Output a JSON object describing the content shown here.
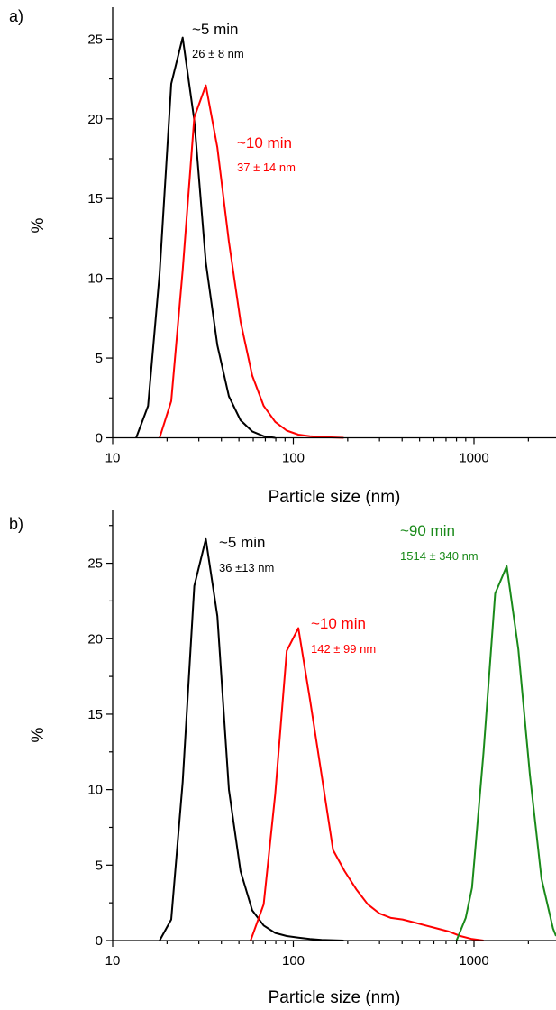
{
  "chart_data": [
    {
      "type": "line",
      "panel_label": "a)",
      "xlabel": "Particle size (nm)",
      "ylabel": "%",
      "x_scale": "log",
      "xlim": [
        10,
        3000
      ],
      "ylim": [
        0,
        27
      ],
      "x_ticks": [
        10,
        100,
        1000
      ],
      "y_ticks": [
        0,
        5,
        10,
        15,
        20,
        25
      ],
      "grid": false,
      "series": [
        {
          "color": "#000000",
          "annotation": "~5 min",
          "annotation_sub": "26 ± 8 nm",
          "points": [
            [
              13.5,
              0
            ],
            [
              15.7,
              2.0
            ],
            [
              18.2,
              10.3
            ],
            [
              21.1,
              22.2
            ],
            [
              24.4,
              25.1
            ],
            [
              28.3,
              19.9
            ],
            [
              32.8,
              11.0
            ],
            [
              38.0,
              5.8
            ],
            [
              44.0,
              2.6
            ],
            [
              51.0,
              1.1
            ],
            [
              59.2,
              0.4
            ],
            [
              68.5,
              0.1
            ],
            [
              79.4,
              0
            ]
          ]
        },
        {
          "color": "#ff0000",
          "annotation": "~10 min",
          "annotation_sub": "37 ± 14 nm",
          "points": [
            [
              18.2,
              0
            ],
            [
              21.1,
              2.3
            ],
            [
              24.4,
              10.5
            ],
            [
              28.3,
              20.1
            ],
            [
              32.8,
              22.1
            ],
            [
              38.0,
              18.2
            ],
            [
              44.0,
              12.3
            ],
            [
              51.0,
              7.3
            ],
            [
              59.2,
              3.9
            ],
            [
              68.5,
              2.0
            ],
            [
              79.4,
              1.0
            ],
            [
              92.0,
              0.45
            ],
            [
              106.6,
              0.2
            ],
            [
              123.5,
              0.1
            ],
            [
              143.2,
              0.05
            ],
            [
              190,
              0
            ]
          ]
        }
      ]
    },
    {
      "type": "line",
      "panel_label": "b)",
      "xlabel": "Particle size (nm)",
      "ylabel": "%",
      "x_scale": "log",
      "xlim": [
        10,
        3000
      ],
      "ylim": [
        0,
        28.5
      ],
      "x_ticks": [
        10,
        100,
        1000
      ],
      "y_ticks": [
        0,
        5,
        10,
        15,
        20,
        25
      ],
      "grid": false,
      "series": [
        {
          "color": "#000000",
          "annotation": "~5 min",
          "annotation_sub": "36 ±13 nm",
          "points": [
            [
              18.2,
              0
            ],
            [
              21.1,
              1.4
            ],
            [
              24.4,
              10.5
            ],
            [
              28.3,
              23.5
            ],
            [
              32.8,
              26.6
            ],
            [
              38.0,
              21.5
            ],
            [
              44.0,
              10.0
            ],
            [
              51.0,
              4.6
            ],
            [
              59.2,
              2.0
            ],
            [
              68.5,
              1.0
            ],
            [
              79.4,
              0.5
            ],
            [
              92.0,
              0.3
            ],
            [
              106.6,
              0.2
            ],
            [
              123.5,
              0.1
            ],
            [
              143.2,
              0.05
            ],
            [
              190,
              0
            ]
          ]
        },
        {
          "color": "#ff0000",
          "annotation": "~10 min",
          "annotation_sub": "142 ± 99 nm",
          "points": [
            [
              58,
              0
            ],
            [
              68.5,
              2.4
            ],
            [
              79.4,
              9.7
            ],
            [
              92.0,
              19.2
            ],
            [
              106.6,
              20.7
            ],
            [
              123.5,
              16.0
            ],
            [
              143.2,
              11.0
            ],
            [
              165.9,
              6.0
            ],
            [
              192.3,
              4.6
            ],
            [
              222.9,
              3.4
            ],
            [
              258.3,
              2.4
            ],
            [
              299.4,
              1.8
            ],
            [
              347.0,
              1.5
            ],
            [
              402.2,
              1.4
            ],
            [
              466.1,
              1.2
            ],
            [
              540.2,
              1.0
            ],
            [
              626.1,
              0.8
            ],
            [
              725.6,
              0.6
            ],
            [
              841.0,
              0.3
            ],
            [
              974.7,
              0.1
            ],
            [
              1130,
              0
            ]
          ]
        },
        {
          "color": "#1a8a1a",
          "annotation": "~90 min",
          "annotation_sub": "1514 ± 340 nm",
          "points": [
            [
              800,
              0
            ],
            [
              900,
              1.5
            ],
            [
              974.7,
              3.5
            ],
            [
              1129.7,
              12.5
            ],
            [
              1309.4,
              23.0
            ],
            [
              1517.6,
              24.8
            ],
            [
              1758.9,
              19.3
            ],
            [
              2038.5,
              11.0
            ],
            [
              2362.7,
              4.1
            ],
            [
              2738.4,
              0.8
            ],
            [
              3000,
              0.3
            ]
          ]
        }
      ]
    }
  ]
}
